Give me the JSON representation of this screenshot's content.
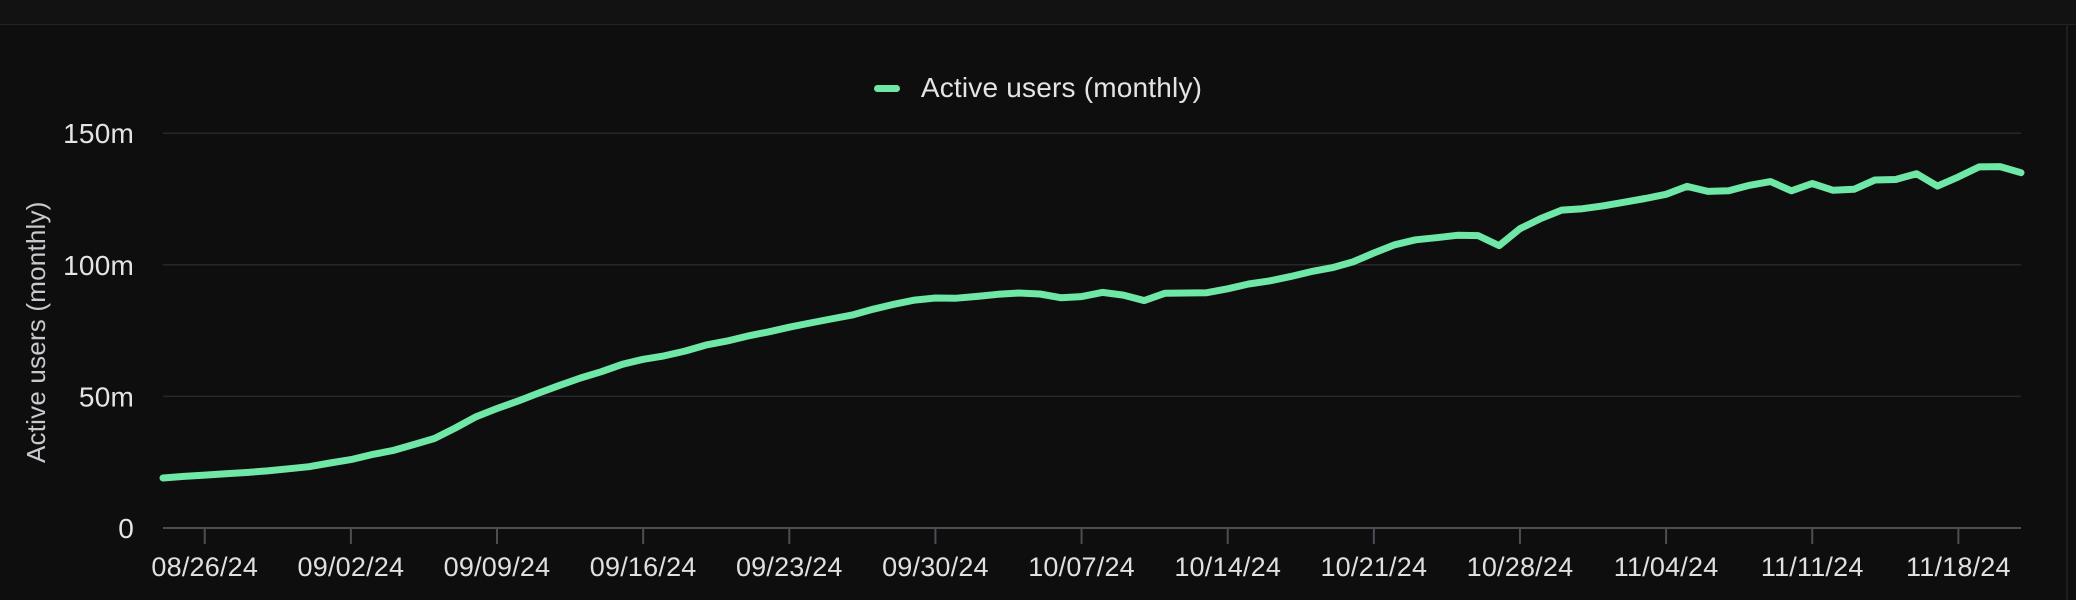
{
  "legend": {
    "label": "Active users (monthly)"
  },
  "chart_data": {
    "type": "line",
    "title": "Active users (monthly)",
    "ylabel": "Active users (monthly)",
    "xlabel": "",
    "legend_position": "top-center",
    "grid": "horizontal",
    "series_color": "#6fe7a6",
    "ylim": [
      0,
      150
    ],
    "y_ticks": [
      {
        "label": "150m",
        "value": 150
      },
      {
        "label": "100m",
        "value": 100
      },
      {
        "label": "50m",
        "value": 50
      },
      {
        "label": "0",
        "value": 0
      }
    ],
    "x_ticks": [
      "08/26/24",
      "09/02/24",
      "09/09/24",
      "09/16/24",
      "09/23/24",
      "09/30/24",
      "10/07/24",
      "10/14/24",
      "10/21/24",
      "10/28/24",
      "11/04/24",
      "11/11/24",
      "11/18/24"
    ],
    "x": [
      "08/24/24",
      "08/25/24",
      "08/26/24",
      "08/27/24",
      "08/28/24",
      "08/29/24",
      "08/30/24",
      "08/31/24",
      "09/01/24",
      "09/02/24",
      "09/03/24",
      "09/04/24",
      "09/05/24",
      "09/06/24",
      "09/07/24",
      "09/08/24",
      "09/09/24",
      "09/10/24",
      "09/11/24",
      "09/12/24",
      "09/13/24",
      "09/14/24",
      "09/15/24",
      "09/16/24",
      "09/17/24",
      "09/18/24",
      "09/19/24",
      "09/20/24",
      "09/21/24",
      "09/22/24",
      "09/23/24",
      "09/24/24",
      "09/25/24",
      "09/26/24",
      "09/27/24",
      "09/28/24",
      "09/29/24",
      "09/30/24",
      "10/01/24",
      "10/02/24",
      "10/03/24",
      "10/04/24",
      "10/05/24",
      "10/06/24",
      "10/07/24",
      "10/08/24",
      "10/09/24",
      "10/10/24",
      "10/11/24",
      "10/12/24",
      "10/13/24",
      "10/14/24",
      "10/15/24",
      "10/16/24",
      "10/17/24",
      "10/18/24",
      "10/19/24",
      "10/20/24",
      "10/21/24",
      "10/22/24",
      "10/23/24",
      "10/24/24",
      "10/25/24",
      "10/26/24",
      "10/27/24",
      "10/28/24",
      "10/29/24",
      "10/30/24",
      "10/31/24",
      "11/01/24",
      "11/02/24",
      "11/03/24",
      "11/04/24",
      "11/05/24",
      "11/06/24",
      "11/07/24",
      "11/08/24",
      "11/09/24",
      "11/10/24",
      "11/11/24",
      "11/12/24",
      "11/13/24",
      "11/14/24",
      "11/15/24",
      "11/16/24",
      "11/17/24",
      "11/18/24",
      "11/19/24",
      "11/20/24",
      "11/21/24"
    ],
    "values": [
      19.0,
      19.6,
      20.1,
      20.6,
      21.1,
      21.7,
      22.5,
      23.3,
      24.7,
      26.0,
      27.9,
      29.4,
      31.7,
      34.0,
      38.0,
      42.3,
      45.4,
      48.2,
      51.3,
      54.2,
      57.0,
      59.4,
      62.2,
      64.1,
      65.4,
      67.2,
      69.5,
      71.0,
      72.9,
      74.5,
      76.3,
      77.9,
      79.4,
      80.9,
      83.1,
      85.0,
      86.6,
      87.4,
      87.3,
      88.0,
      88.8,
      89.3,
      88.9,
      87.5,
      87.9,
      89.5,
      88.5,
      86.4,
      89.2,
      89.3,
      89.4,
      90.9,
      92.7,
      93.9,
      95.5,
      97.4,
      98.9,
      101.1,
      104.5,
      107.6,
      109.5,
      110.3,
      111.2,
      111.1,
      107.3,
      113.7,
      117.6,
      120.8,
      121.3,
      122.4,
      123.8,
      125.2,
      126.8,
      129.8,
      127.9,
      128.1,
      130.2,
      131.6,
      128.1,
      130.9,
      128.3,
      128.7,
      132.2,
      132.4,
      134.6,
      129.9,
      133.4,
      137.2,
      137.3,
      135.0
    ],
    "units": "millions of users"
  }
}
